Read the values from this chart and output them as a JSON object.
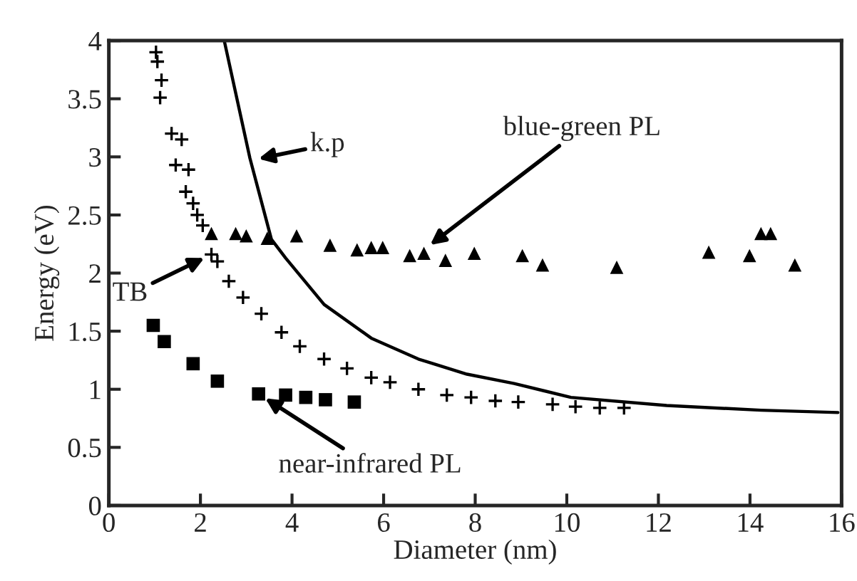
{
  "chart_data": {
    "type": "scatter",
    "xlabel": "Diameter (nm)",
    "ylabel": "Energy (eV)",
    "xlim": [
      0,
      16
    ],
    "xticks": [
      0,
      2,
      4,
      6,
      8,
      10,
      12,
      14,
      16
    ],
    "ylim": [
      0,
      4
    ],
    "yticks": [
      0,
      0.5,
      1,
      1.5,
      2,
      2.5,
      3,
      3.5,
      4
    ],
    "grid": false,
    "legend": false,
    "series": [
      {
        "type": "line",
        "marker": "none",
        "line_style": "solid",
        "color": "#000000",
        "x": [
          2.52,
          3.08,
          3.55,
          3.86,
          4.7,
          5.73,
          6.76,
          7.82,
          8.85,
          10.09,
          12.18,
          14.24,
          15.92
        ],
        "values": [
          4.0,
          2.99,
          2.29,
          2.13,
          1.73,
          1.44,
          1.26,
          1.13,
          1.05,
          0.93,
          0.86,
          0.82,
          0.8
        ]
      },
      {
        "marker": "cross",
        "color": "#000000",
        "x": [
          1.03,
          1.06,
          1.15,
          1.12,
          1.37,
          1.59,
          1.46,
          1.74,
          1.68,
          1.84,
          1.93,
          2.05,
          2.24,
          2.37,
          2.62,
          2.93,
          3.33,
          3.77,
          4.17,
          4.7,
          5.2,
          5.73,
          6.14,
          6.76,
          7.38,
          7.91,
          8.44,
          8.94,
          9.69,
          10.19,
          10.72,
          11.25
        ],
        "values": [
          3.9,
          3.82,
          3.66,
          3.51,
          3.2,
          3.15,
          2.93,
          2.89,
          2.7,
          2.6,
          2.5,
          2.41,
          2.16,
          2.1,
          1.93,
          1.79,
          1.65,
          1.49,
          1.37,
          1.26,
          1.18,
          1.1,
          1.06,
          1.0,
          0.95,
          0.93,
          0.9,
          0.89,
          0.87,
          0.85,
          0.84,
          0.84
        ]
      },
      {
        "marker": "triangle",
        "color": "#000000",
        "x": [
          2.24,
          2.77,
          3.0,
          3.46,
          4.1,
          4.83,
          5.42,
          5.73,
          5.98,
          6.57,
          6.88,
          7.35,
          7.98,
          9.03,
          9.47,
          11.09,
          13.1,
          13.99,
          14.24,
          14.45,
          14.98
        ],
        "values": [
          2.34,
          2.34,
          2.32,
          2.3,
          2.32,
          2.24,
          2.2,
          2.22,
          2.22,
          2.15,
          2.17,
          2.11,
          2.17,
          2.15,
          2.07,
          2.05,
          2.18,
          2.15,
          2.34,
          2.34,
          2.07
        ]
      },
      {
        "marker": "square",
        "color": "#000000",
        "x": [
          0.97,
          1.21,
          1.84,
          2.37,
          3.27,
          3.86,
          4.3,
          4.73,
          5.36
        ],
        "values": [
          1.55,
          1.41,
          1.22,
          1.07,
          0.96,
          0.95,
          0.93,
          0.91,
          0.89
        ]
      }
    ],
    "annotations": [
      {
        "text": "k.p",
        "x": 3.1,
        "y": 2.97
      },
      {
        "text": "blue-green PL",
        "x": 6.88,
        "y": 2.2
      },
      {
        "text": "TB",
        "x": 2.24,
        "y": 2.16
      },
      {
        "text": "near-infrared PL",
        "x": 3.27,
        "y": 0.96
      }
    ]
  }
}
